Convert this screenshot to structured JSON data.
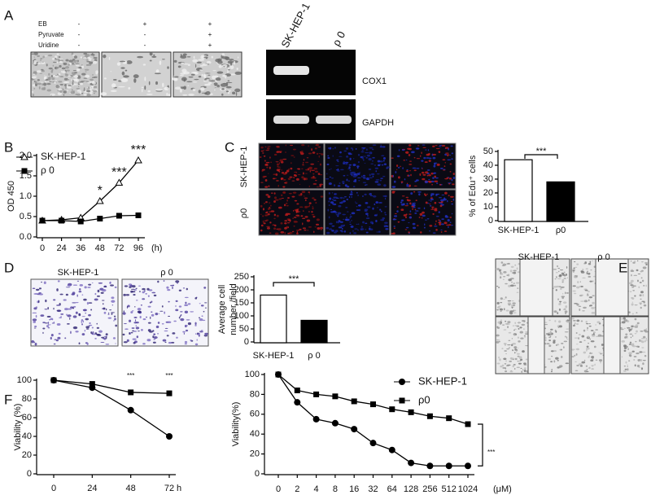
{
  "panel_labels": [
    "A",
    "B",
    "C",
    "D",
    "E",
    "F"
  ],
  "panel_a": {
    "conditions": [
      {
        "name": "EB",
        "marks": [
          "-",
          "+",
          "+"
        ]
      },
      {
        "name": "Pyruvate",
        "marks": [
          "-",
          "-",
          "+"
        ]
      },
      {
        "name": "Uridine",
        "marks": [
          "-",
          "-",
          "+"
        ]
      }
    ],
    "gel_lanes": [
      "SK-HEP-1",
      "ρ 0"
    ],
    "gel_bands": [
      "COX1",
      "GAPDH"
    ]
  },
  "panel_c": {
    "rows": [
      "SK-HEP-1",
      "ρ0"
    ]
  },
  "panel_d": {
    "images": [
      "SK-HEP-1",
      "ρ 0"
    ]
  },
  "panel_e": {
    "images": [
      "SK-HEP-1",
      "ρ 0"
    ]
  },
  "chart_data": [
    {
      "type": "line",
      "ylabel": "OD 450",
      "x_unit": "(h)",
      "categories": [
        0,
        24,
        36,
        48,
        72,
        96
      ],
      "ylim": [
        0,
        2
      ],
      "yticks": [
        {
          "value": 0,
          "label": "0.0"
        },
        {
          "value": 0.5,
          "label": "0.5"
        },
        {
          "value": 1,
          "label": "1.0"
        },
        {
          "value": 1.5,
          "label": "1.5"
        },
        {
          "value": 2,
          "label": "2.0"
        }
      ],
      "series": [
        {
          "name": "SK-HEP-1",
          "color": "#000000",
          "marker": "triangle-open",
          "values": [
            0.4,
            0.42,
            0.47,
            0.88,
            1.33,
            1.88
          ]
        },
        {
          "name": "ρ 0",
          "color": "#000000",
          "marker": "square",
          "values": [
            0.4,
            0.4,
            0.38,
            0.45,
            0.52,
            0.53
          ]
        }
      ],
      "annotations": [
        "*",
        "***",
        "***"
      ]
    },
    {
      "type": "bar",
      "ylabel": "% of Edu⁺ cells",
      "categories": [
        "SK-HEP-1",
        "ρ0"
      ],
      "values": [
        44,
        28
      ],
      "colors": [
        "#ffffff",
        "#000000"
      ],
      "ylim": [
        0,
        50
      ],
      "yticks": [
        0,
        10,
        20,
        30,
        40,
        50
      ],
      "annotations": [
        "***"
      ]
    },
    {
      "type": "bar",
      "ylabel": [
        "Average cell",
        "number /field"
      ],
      "categories": [
        "SK-HEP-1",
        "ρ 0"
      ],
      "values": [
        180,
        83
      ],
      "colors": [
        "#ffffff",
        "#000000"
      ],
      "ylim": [
        0,
        250
      ],
      "yticks": [
        0,
        50,
        100,
        150,
        200,
        250
      ],
      "annotations": [
        "***"
      ]
    },
    {
      "type": "line",
      "ylabel": "Viability (%)",
      "x_unit": "h",
      "categories": [
        0,
        24,
        48,
        72
      ],
      "ylim": [
        0,
        100
      ],
      "yticks": [
        0,
        20,
        40,
        60,
        80,
        100
      ],
      "series": [
        {
          "color": "#000000",
          "marker": "square",
          "values": [
            100,
            96,
            87,
            86
          ]
        },
        {
          "color": "#000000",
          "marker": "circle",
          "values": [
            100,
            92,
            68,
            40
          ]
        }
      ],
      "annotations": [
        "***",
        "***"
      ]
    },
    {
      "type": "line",
      "ylabel": "Viability(%)",
      "x_unit": "(μM)",
      "categories": [
        0,
        2,
        4,
        8,
        16,
        32,
        64,
        128,
        256,
        512,
        1024
      ],
      "ylim": [
        0,
        100
      ],
      "yticks": [
        0,
        20,
        40,
        60,
        80,
        100
      ],
      "series": [
        {
          "name": "SK-HEP-1",
          "color": "#000000",
          "marker": "circle",
          "values": [
            100,
            72,
            55,
            51,
            45,
            31,
            24,
            11,
            8,
            8,
            8
          ]
        },
        {
          "name": "ρ0",
          "color": "#000000",
          "marker": "square",
          "values": [
            100,
            84,
            80,
            78,
            73,
            70,
            65,
            62,
            58,
            56,
            50
          ]
        }
      ],
      "annotations": [
        "***"
      ]
    }
  ]
}
